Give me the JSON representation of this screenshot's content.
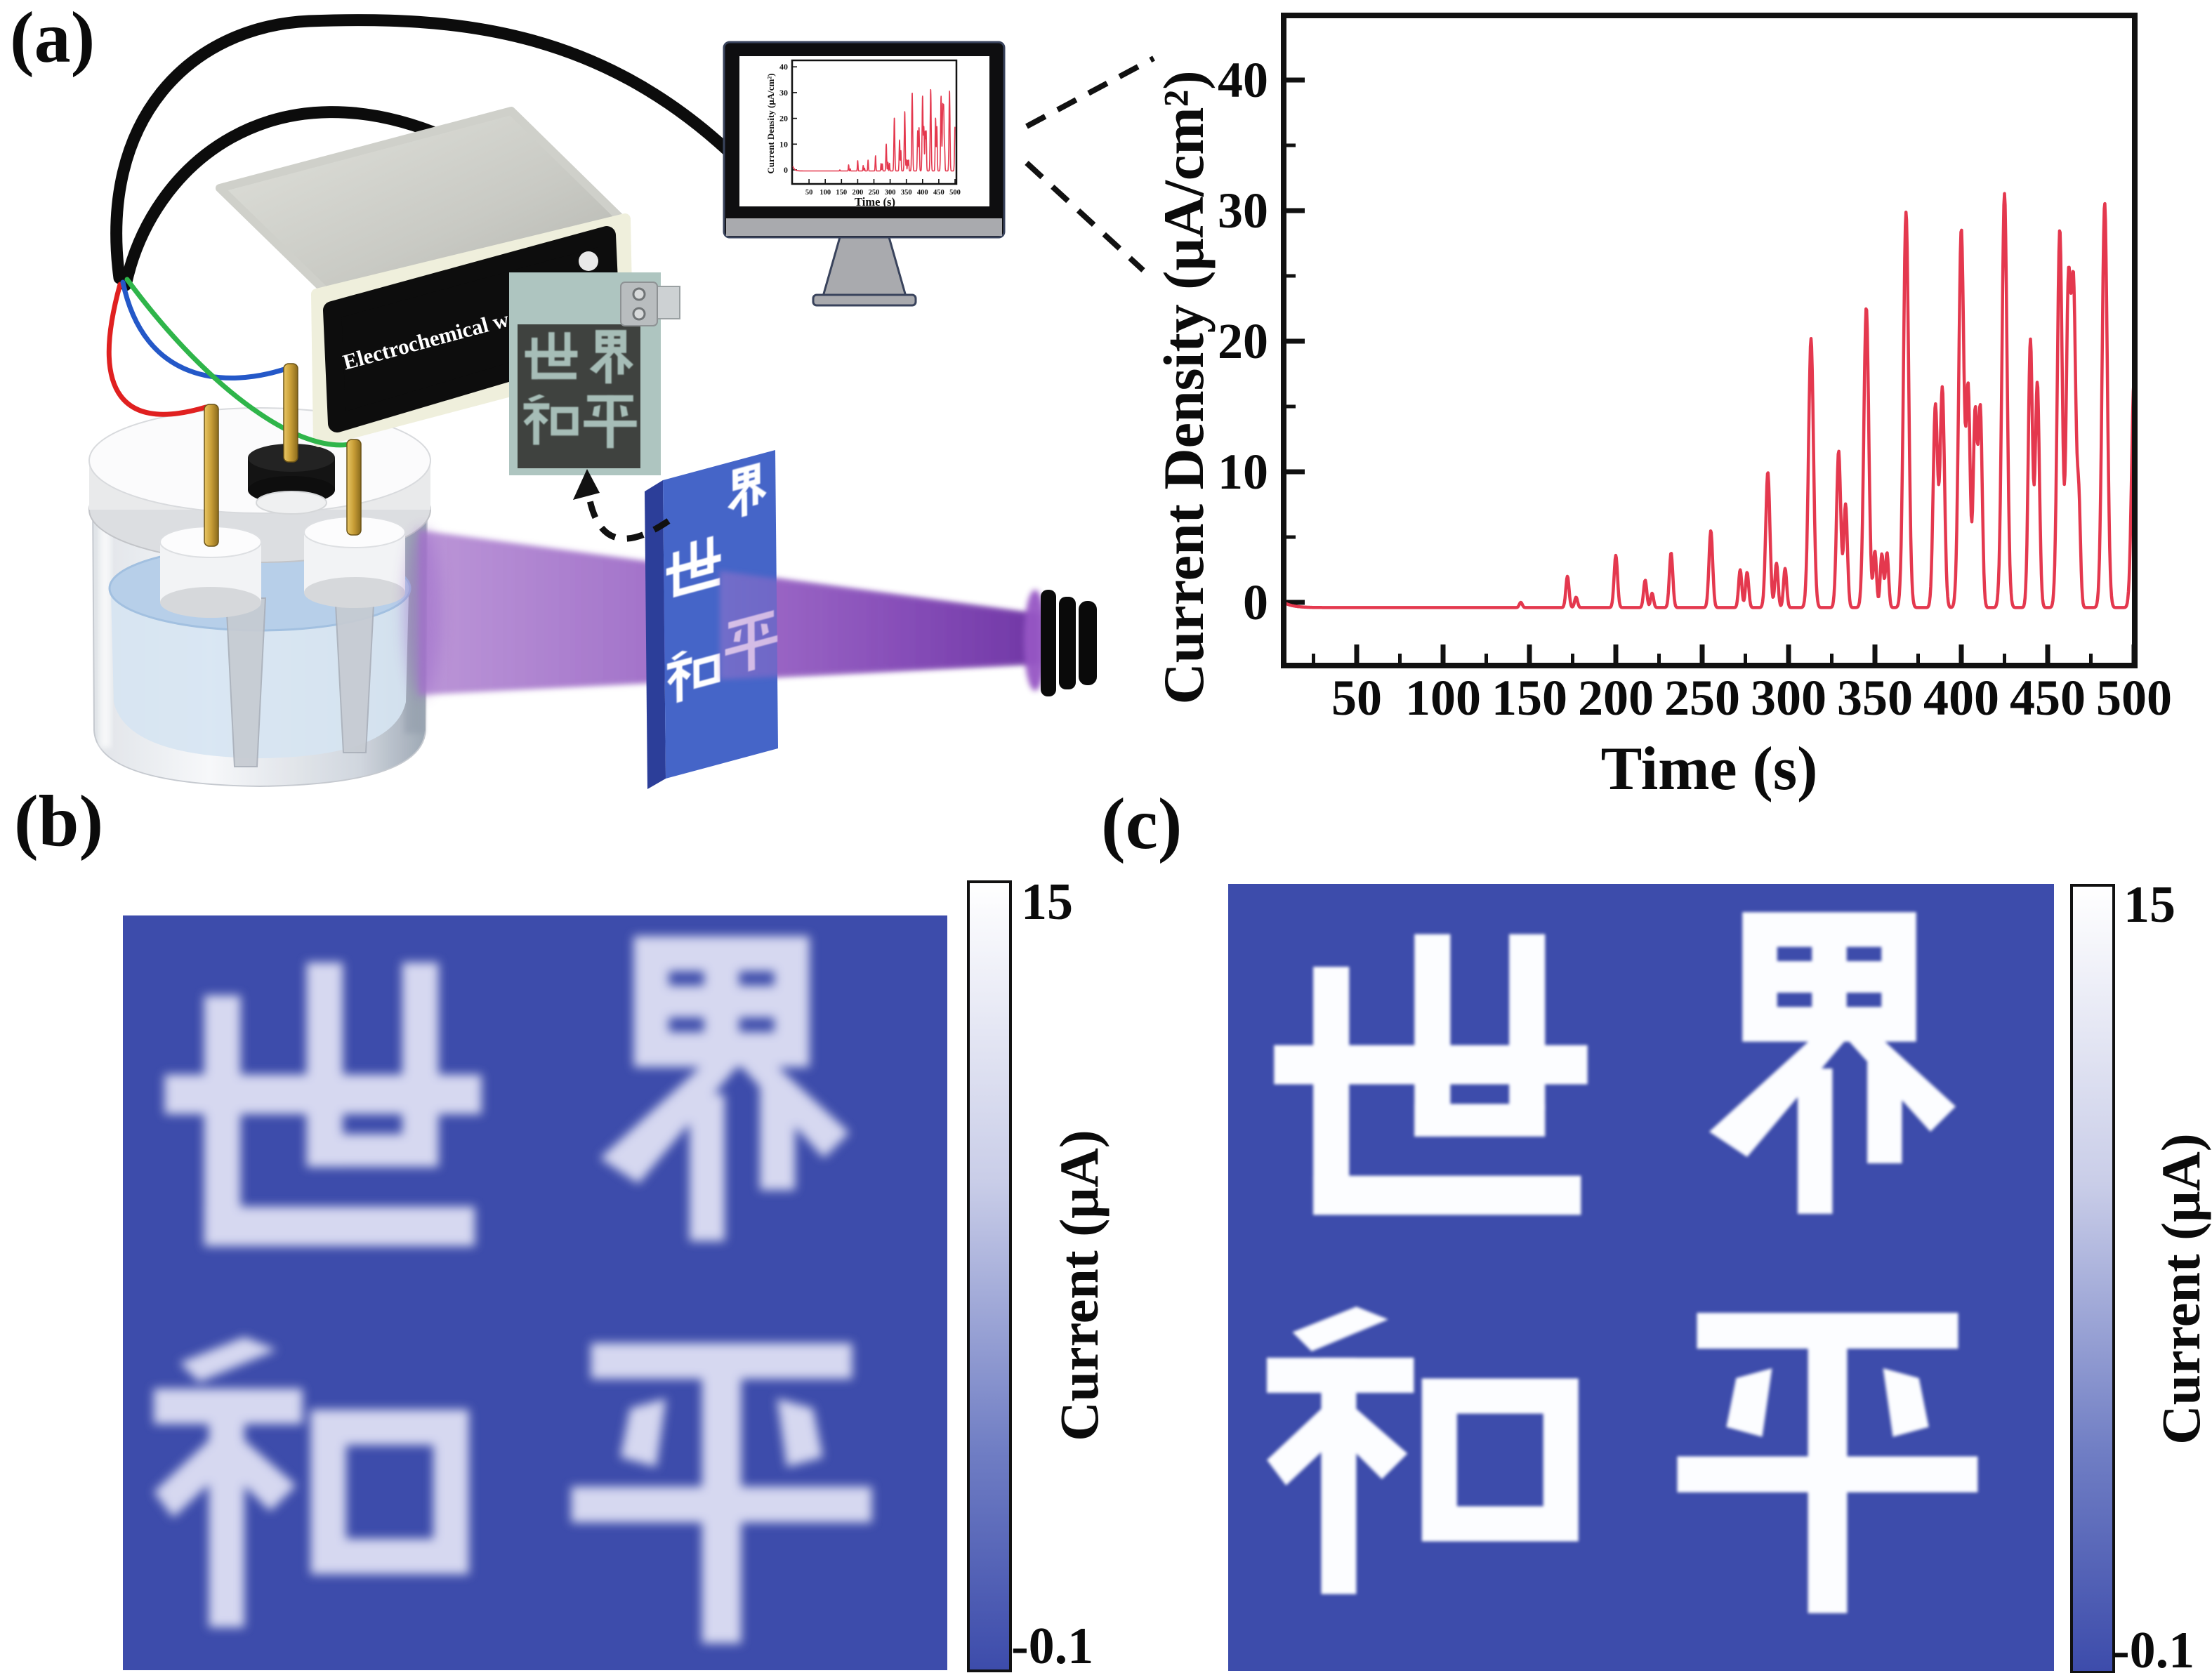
{
  "panels": {
    "a": {
      "label": "(a)"
    },
    "b": {
      "label": "(b)"
    },
    "c": {
      "label": "(c)"
    }
  },
  "workstation": {
    "label": "Electrochemical workstation"
  },
  "photo": {
    "characters": "世界和平"
  },
  "mask": {
    "characters": "世界和平"
  },
  "light_source": {
    "type": "UV lamp"
  },
  "chart_data": {
    "type": "line",
    "title": "",
    "xlabel": "Time (s)",
    "ylabel": "Current Density (μA/cm²)",
    "xlim": [
      0,
      505
    ],
    "ylim": [
      -5,
      45
    ],
    "x_ticks": [
      50,
      100,
      150,
      200,
      250,
      300,
      350,
      400,
      450,
      500
    ],
    "y_ticks": [
      0,
      10,
      20,
      30,
      40
    ],
    "grid": false,
    "legend": "none",
    "line_color": "#e4384e",
    "baseline": -0.4,
    "initial_transient": {
      "amplitude": 1.9,
      "tau": 5
    },
    "peaks": [
      [
        145,
        0.4,
        1.2
      ],
      [
        172,
        2.4,
        1.3
      ],
      [
        177,
        0.8,
        1.2
      ],
      [
        200,
        4.0,
        1.4
      ],
      [
        217,
        2.1,
        1.3
      ],
      [
        221,
        1.1,
        1.2
      ],
      [
        232,
        4.2,
        1.4
      ],
      [
        255,
        5.9,
        1.5
      ],
      [
        272,
        2.9,
        1.3
      ],
      [
        276,
        2.7,
        1.3
      ],
      [
        288,
        10.4,
        1.7
      ],
      [
        293,
        3.4,
        1.3
      ],
      [
        298,
        3.0,
        1.3
      ],
      [
        313,
        20.6,
        2.0
      ],
      [
        329,
        12.0,
        1.7
      ],
      [
        333,
        7.9,
        1.5
      ],
      [
        345,
        23.0,
        2.0
      ],
      [
        350,
        4.3,
        1.3
      ],
      [
        354,
        4.1,
        1.3
      ],
      [
        357,
        4.2,
        1.3
      ],
      [
        368,
        30.3,
        2.1
      ],
      [
        385,
        15.5,
        1.8
      ],
      [
        389,
        16.8,
        1.8
      ],
      [
        400,
        29.0,
        2.1
      ],
      [
        404,
        16.4,
        1.6
      ],
      [
        408,
        14.9,
        1.6
      ],
      [
        411,
        15.1,
        1.6
      ],
      [
        425,
        31.7,
        2.1
      ],
      [
        440,
        20.5,
        1.7
      ],
      [
        444,
        17.2,
        1.7
      ],
      [
        457,
        29.0,
        2.0
      ],
      [
        462,
        24.3,
        1.8
      ],
      [
        465,
        23.9,
        1.8
      ],
      [
        468,
        8.1,
        1.4
      ],
      [
        483,
        31.0,
        2.1
      ],
      [
        500,
        17.4,
        2.0
      ]
    ]
  },
  "panel_b": {
    "characters": "世界和平",
    "colorbar": {
      "max": "15",
      "min": "-0.1",
      "label": "Current (μA)"
    }
  },
  "panel_c": {
    "characters": "世界和平",
    "colorbar": {
      "max": "15",
      "min": "-0.1",
      "label": "Current (μA)"
    }
  },
  "colors": {
    "trace": "#e4384e",
    "panel_blue": "#3d4cab",
    "mask_blue": "#4565c8",
    "beam_purple": "#7a3fae"
  }
}
